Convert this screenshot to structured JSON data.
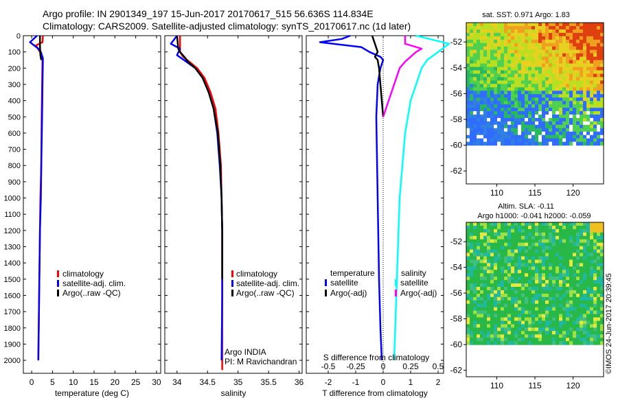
{
  "header": {
    "line1": "Argo profile: IN 2901349_197 15-Jun-2017 20170617_515 56.636S 114.834E",
    "line2": "Climatology: CARS2009. Satellite-adjusted climatology: synTS_20170617.nc (1d later)"
  },
  "colors": {
    "climatology": "#ff0000",
    "satellite": "#0000ff",
    "argo": "#000000",
    "sal_satellite": "#00ffff",
    "sal_argo": "#ff00ff"
  },
  "chart_data": [
    {
      "type": "line",
      "name": "temperature",
      "xlabel": "temperature (deg C)",
      "xlim": [
        -2,
        31
      ],
      "ylim": [
        2080,
        0
      ],
      "xticks": [
        0,
        5,
        10,
        15,
        20,
        25,
        30
      ],
      "yticks": [
        0,
        100,
        200,
        300,
        400,
        500,
        600,
        700,
        800,
        900,
        1000,
        1100,
        1200,
        1300,
        1400,
        1500,
        1600,
        1700,
        1800,
        1900,
        2000
      ],
      "legend": [
        "climatology",
        "satellite-adj. clim.",
        "Argo(..raw -QC)"
      ],
      "series": [
        {
          "name": "climatology",
          "color": "#ff0000",
          "x": [
            2.7,
            2.6,
            1.0,
            2.0,
            2.6,
            2.5,
            2.4,
            2.3,
            2.1,
            2.0,
            1.9,
            1.8,
            1.7,
            1.6
          ],
          "y": [
            0,
            40,
            60,
            100,
            140,
            300,
            500,
            800,
            1000,
            1200,
            1400,
            1600,
            1800,
            2000
          ]
        },
        {
          "name": "satellite-adj. clim.",
          "color": "#0000ff",
          "x": [
            1.3,
            -0.4,
            1.6,
            2.2,
            2.7,
            2.6,
            2.5,
            2.3,
            2.2,
            2.0,
            1.9,
            1.8,
            1.7,
            1.6
          ],
          "y": [
            0,
            40,
            80,
            100,
            140,
            300,
            500,
            800,
            1000,
            1200,
            1400,
            1600,
            1800,
            2000
          ]
        },
        {
          "name": "Argo(..raw -QC)",
          "color": "#000000",
          "x": [
            2.0,
            2.0,
            2.1,
            2.3
          ],
          "y": [
            0,
            60,
            120,
            150
          ]
        }
      ]
    },
    {
      "type": "line",
      "name": "salinity",
      "xlabel": "salinity",
      "xlim": [
        33.8,
        36.05
      ],
      "ylim": [
        2080,
        0
      ],
      "xticks": [
        34,
        34.5,
        35,
        35.5,
        36
      ],
      "legend": [
        "climatology",
        "satellite-adj. clim.",
        "Argo(..raw -QC)"
      ],
      "annotation": [
        "Argo INDIA",
        "PI: M Ravichandran"
      ],
      "series": [
        {
          "name": "climatology",
          "color": "#ff0000",
          "x": [
            34.05,
            34.05,
            34.1,
            34.2,
            34.33,
            34.45,
            34.55,
            34.63,
            34.68,
            34.72,
            34.73,
            34.74,
            34.74,
            34.74,
            34.74
          ],
          "y": [
            0,
            100,
            130,
            160,
            200,
            260,
            350,
            450,
            600,
            800,
            1000,
            1200,
            1500,
            1800,
            2060
          ]
        },
        {
          "name": "satellite-adj. clim.",
          "color": "#0000ff",
          "x": [
            34.0,
            33.9,
            34.05,
            34.0,
            34.15,
            34.3,
            34.42,
            34.52,
            34.6,
            34.66,
            34.7,
            34.73,
            34.74,
            34.74,
            34.73
          ],
          "y": [
            0,
            50,
            80,
            120,
            160,
            200,
            260,
            350,
            450,
            600,
            800,
            1000,
            1200,
            1600,
            2000
          ]
        },
        {
          "name": "Argo(..raw -QC)",
          "color": "#000000",
          "x": [
            34.0,
            34.02,
            34.05,
            34.12,
            34.18,
            34.3,
            34.42,
            34.52,
            34.6,
            34.67,
            34.71,
            34.73,
            34.74,
            34.74
          ],
          "y": [
            0,
            80,
            100,
            130,
            160,
            200,
            260,
            350,
            450,
            600,
            800,
            1000,
            1200,
            1500
          ]
        }
      ]
    },
    {
      "type": "line",
      "name": "difference from climatology",
      "xlabel": "T difference from climatology",
      "xlabel_top": "S difference from climatology",
      "xlim": [
        -2.8,
        2.2
      ],
      "ylim": [
        2080,
        0
      ],
      "xticks": [
        -2,
        -1,
        0,
        1,
        2
      ],
      "xticks_top": [
        {
          "v": -0.5,
          "label": "-0.5"
        },
        {
          "v": -0.25,
          "label": "-0.25"
        },
        {
          "v": 0,
          "label": "0"
        },
        {
          "v": 0.25,
          "label": "0.25"
        },
        {
          "v": 0.5,
          "label": "0.5"
        }
      ],
      "legend_left_title": "temperature",
      "legend_right_title": "salinity",
      "legend_left": [
        "satellite",
        "Argo(-adj)"
      ],
      "legend_right": [
        "satellite",
        "Argo(-adj)"
      ],
      "series": [
        {
          "name": "T satellite",
          "color": "#0000ff",
          "x": [
            -1.2,
            -1.5,
            -2.3,
            -0.8,
            -0.5,
            -0.1,
            0.0,
            -0.1,
            -0.2,
            -0.25,
            -0.2,
            -0.15,
            -0.1,
            -0.05
          ],
          "y": [
            0,
            20,
            40,
            70,
            100,
            130,
            150,
            200,
            300,
            500,
            1000,
            1500,
            1800,
            2000
          ]
        },
        {
          "name": "T Argo(-adj)",
          "color": "#000000",
          "x": [
            -0.4,
            -0.3,
            -0.2,
            -0.3,
            -0.2,
            -0.15,
            -0.1,
            -0.05,
            0
          ],
          "y": [
            0,
            50,
            100,
            130,
            150,
            200,
            300,
            400,
            500
          ]
        },
        {
          "name": "S satellite",
          "color": "#00ffff",
          "x": [
            0.3,
            0.6,
            0.5,
            0.4,
            0.35,
            0.3,
            0.25,
            0.2,
            0.15,
            0.12,
            0.1
          ],
          "y": [
            0,
            50,
            100,
            150,
            200,
            300,
            400,
            600,
            1000,
            1600,
            2000
          ]
        },
        {
          "name": "S Argo(-adj)",
          "color": "#ff00ff",
          "x": [
            0.2,
            0.2,
            0.35,
            0.3,
            0.25,
            0.2,
            0.15,
            0.1,
            0.05,
            0
          ],
          "y": [
            0,
            50,
            80,
            100,
            130,
            160,
            200,
            300,
            400,
            500
          ]
        },
        {
          "name": "zero",
          "color": "#000000",
          "x": [
            0,
            0
          ],
          "y": [
            0,
            2080
          ],
          "dotted": true
        }
      ]
    },
    {
      "type": "heatmap",
      "name": "sst-map",
      "title": "sat. SST: 0.971  Argo: 1.83",
      "xlim": [
        106,
        124
      ],
      "ylim": [
        -63,
        -50.5
      ],
      "xticks": [
        110,
        115,
        120
      ],
      "yticks": [
        -52,
        -54,
        -56,
        -58,
        -60,
        -62
      ],
      "data_limit_y": -60
    },
    {
      "type": "heatmap",
      "name": "sla-map",
      "title_line1": "Altim. SLA: -0.11",
      "title_line2": "Argo h1000: -0.041  h2000: -0.059",
      "xlim": [
        106,
        124
      ],
      "ylim": [
        -62.5,
        -50.5
      ],
      "xticks": [
        110,
        115,
        120
      ],
      "yticks": [
        -52,
        -54,
        -56,
        -58,
        -60,
        -62
      ],
      "data_limit_y": -60
    }
  ],
  "credit": "©IMOS 24-Jun-2017 20:39:45"
}
